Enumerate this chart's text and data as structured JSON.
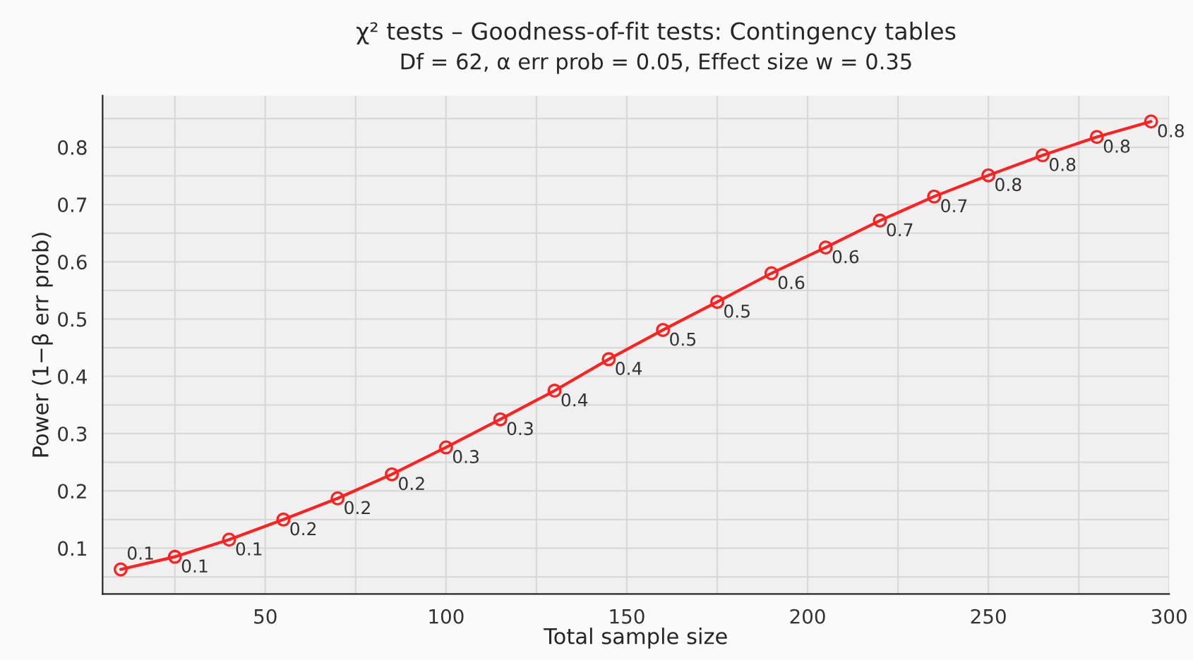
{
  "chart_data": {
    "type": "line",
    "title": "χ² tests – Goodness-of-fit tests: Contingency tables",
    "subtitle": "Df = 62, α err prob = 0.05, Effect size w = 0.35",
    "xlabel": "Total sample size",
    "ylabel": "Power (1−β err prob)",
    "x": [
      10,
      25,
      40,
      55,
      70,
      85,
      100,
      115,
      130,
      145,
      160,
      175,
      190,
      205,
      220,
      235,
      250,
      265,
      280,
      295
    ],
    "series": [
      {
        "color": "#ff2020",
        "values": [
          0.063,
          0.085,
          0.115,
          0.15,
          0.187,
          0.229,
          0.276,
          0.325,
          0.375,
          0.43,
          0.481,
          0.53,
          0.58,
          0.625,
          0.672,
          0.714,
          0.751,
          0.786,
          0.818,
          0.845
        ],
        "value_labels": [
          "0.1",
          "0.1",
          "0.1",
          "0.2",
          "0.2",
          "0.2",
          "0.3",
          "0.3",
          "0.4",
          "0.4",
          "0.5",
          "0.5",
          "0.6",
          "0.6",
          "0.7",
          "0.7",
          "0.8",
          "0.8",
          "0.8",
          "0.8"
        ]
      }
    ],
    "xlim": [
      5,
      300
    ],
    "ylim": [
      0.02,
      0.89
    ],
    "xticks": [
      {
        "value": 25,
        "label": null
      },
      50,
      {
        "value": 75,
        "label": null
      },
      100,
      {
        "value": 125,
        "label": null
      },
      150,
      {
        "value": 175,
        "label": null
      },
      200,
      {
        "value": 225,
        "label": null
      },
      250,
      {
        "value": 275,
        "label": null
      },
      300
    ],
    "yticks": [
      {
        "value": 0.05,
        "label": null
      },
      0.1,
      {
        "value": 0.15,
        "label": null
      },
      0.2,
      {
        "value": 0.25,
        "label": null
      },
      0.3,
      {
        "value": 0.35,
        "label": null
      },
      0.4,
      {
        "value": 0.45,
        "label": null
      },
      0.5,
      {
        "value": 0.55,
        "label": null
      },
      0.6,
      {
        "value": 0.65,
        "label": null
      },
      0.7,
      {
        "value": 0.75,
        "label": null
      },
      0.8,
      {
        "value": 0.85,
        "label": null
      }
    ],
    "grid": true,
    "marker": "circle",
    "line_style": "solid"
  }
}
